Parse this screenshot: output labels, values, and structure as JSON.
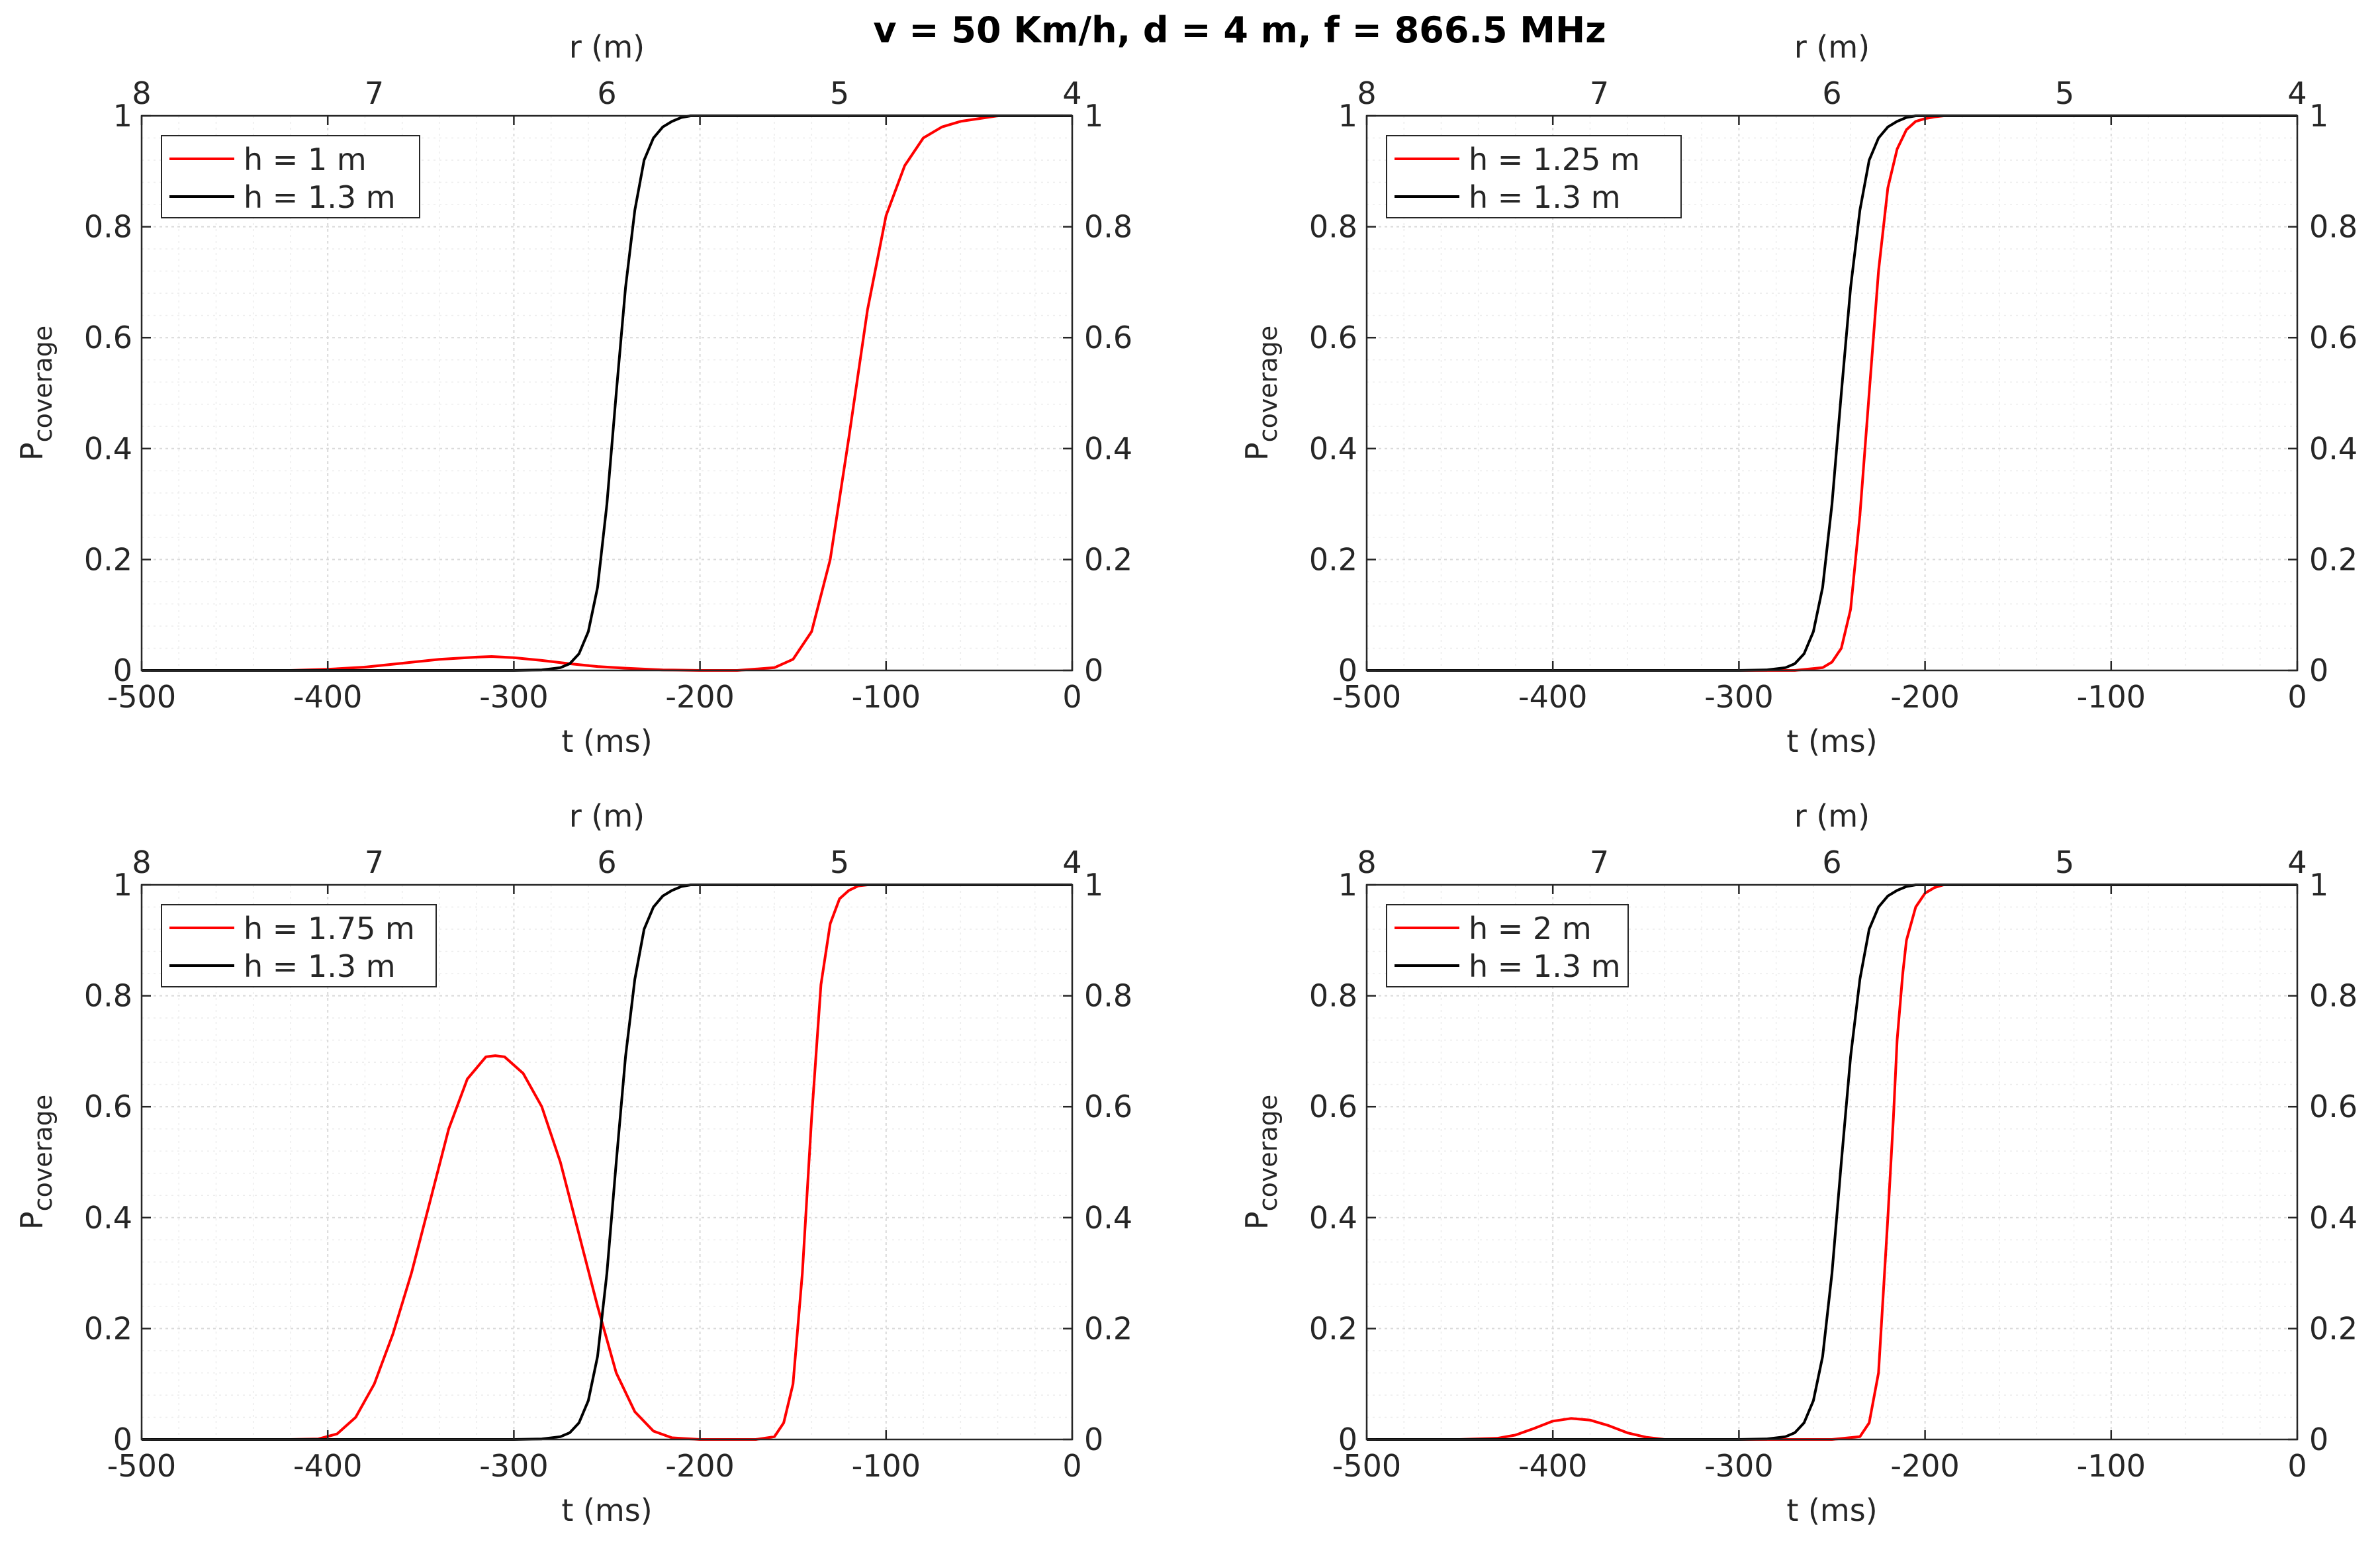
{
  "figure_title": "v = 50 Km/h, d = 4 m, f = 866.5 MHz",
  "colors": {
    "series_a": "#ff0000",
    "series_b": "#000000",
    "axis": "#262626",
    "grid": "#d9d9d9",
    "minor_grid": "#ececec"
  },
  "chart_data": [
    {
      "type": "line",
      "title": "",
      "xlabel": "t (ms)",
      "xlabel_top": "r (m)",
      "ylabel_main": "P",
      "ylabel_sub": "coverage",
      "xlim": [
        -500,
        0
      ],
      "ylim": [
        0,
        1
      ],
      "xticks": [
        -500,
        -400,
        -300,
        -200,
        -100,
        0
      ],
      "xtick_labels": [
        "-500",
        "-400",
        "-300",
        "-200",
        "-100",
        "0"
      ],
      "yticks": [
        0,
        0.2,
        0.4,
        0.6,
        0.8,
        1
      ],
      "ytick_labels": [
        "0",
        "0.2",
        "0.4",
        "0.6",
        "0.8",
        "1"
      ],
      "xtop_ticks": [
        8,
        7,
        6,
        5,
        4
      ],
      "xtop_tick_labels": [
        "8",
        "7",
        "6",
        "5",
        "4"
      ],
      "xtop_lim": [
        8,
        4
      ],
      "grid": true,
      "legend_position": "top-left",
      "series": [
        {
          "name": "h = 1 m",
          "color": "#ff0000",
          "x": [
            -500,
            -450,
            -420,
            -400,
            -380,
            -360,
            -340,
            -320,
            -312,
            -300,
            -285,
            -270,
            -255,
            -240,
            -220,
            -200,
            -180,
            -160,
            -150,
            -140,
            -130,
            -120,
            -110,
            -100,
            -90,
            -80,
            -70,
            -60,
            -40,
            -20,
            0
          ],
          "y": [
            0,
            0,
            0,
            0.002,
            0.006,
            0.013,
            0.02,
            0.024,
            0.025,
            0.023,
            0.018,
            0.012,
            0.007,
            0.004,
            0.001,
            0,
            0,
            0.005,
            0.02,
            0.07,
            0.2,
            0.42,
            0.65,
            0.82,
            0.91,
            0.96,
            0.98,
            0.99,
            1,
            1,
            1
          ]
        },
        {
          "name": "h = 1.3 m",
          "color": "#000000",
          "x": [
            -500,
            -300,
            -285,
            -275,
            -270,
            -265,
            -260,
            -255,
            -250,
            -245,
            -240,
            -235,
            -230,
            -225,
            -220,
            -215,
            -210,
            -205,
            -200,
            -190,
            -150,
            0
          ],
          "y": [
            0,
            0,
            0.001,
            0.005,
            0.012,
            0.03,
            0.07,
            0.15,
            0.3,
            0.5,
            0.69,
            0.83,
            0.92,
            0.96,
            0.98,
            0.99,
            0.997,
            1,
            1,
            1,
            1,
            1
          ]
        }
      ]
    },
    {
      "type": "line",
      "title": "",
      "xlabel": "t (ms)",
      "xlabel_top": "r (m)",
      "ylabel_main": "P",
      "ylabel_sub": "coverage",
      "xlim": [
        -500,
        0
      ],
      "ylim": [
        0,
        1
      ],
      "xticks": [
        -500,
        -400,
        -300,
        -200,
        -100,
        0
      ],
      "xtick_labels": [
        "-500",
        "-400",
        "-300",
        "-200",
        "-100",
        "0"
      ],
      "yticks": [
        0,
        0.2,
        0.4,
        0.6,
        0.8,
        1
      ],
      "ytick_labels": [
        "0",
        "0.2",
        "0.4",
        "0.6",
        "0.8",
        "1"
      ],
      "xtop_ticks": [
        8,
        7,
        6,
        5,
        4
      ],
      "xtop_tick_labels": [
        "8",
        "7",
        "6",
        "5",
        "4"
      ],
      "xtop_lim": [
        8,
        4
      ],
      "grid": true,
      "legend_position": "top-left",
      "series": [
        {
          "name": "h = 1.25 m",
          "color": "#ff0000",
          "x": [
            -500,
            -270,
            -255,
            -250,
            -245,
            -240,
            -235,
            -230,
            -225,
            -220,
            -215,
            -210,
            -205,
            -200,
            -195,
            -190,
            -180,
            -170,
            0
          ],
          "y": [
            0,
            0,
            0.005,
            0.015,
            0.04,
            0.11,
            0.28,
            0.5,
            0.72,
            0.87,
            0.94,
            0.975,
            0.99,
            0.995,
            0.998,
            1,
            1,
            1,
            1
          ]
        },
        {
          "name": "h = 1.3 m",
          "color": "#000000",
          "x": [
            -500,
            -300,
            -285,
            -275,
            -270,
            -265,
            -260,
            -255,
            -250,
            -245,
            -240,
            -235,
            -230,
            -225,
            -220,
            -215,
            -210,
            -205,
            -200,
            -190,
            -150,
            0
          ],
          "y": [
            0,
            0,
            0.001,
            0.005,
            0.012,
            0.03,
            0.07,
            0.15,
            0.3,
            0.5,
            0.69,
            0.83,
            0.92,
            0.96,
            0.98,
            0.99,
            0.997,
            1,
            1,
            1,
            1,
            1
          ]
        }
      ]
    },
    {
      "type": "line",
      "title": "",
      "xlabel": "t (ms)",
      "xlabel_top": "r (m)",
      "ylabel_main": "P",
      "ylabel_sub": "coverage",
      "xlim": [
        -500,
        0
      ],
      "ylim": [
        0,
        1
      ],
      "xticks": [
        -500,
        -400,
        -300,
        -200,
        -100,
        0
      ],
      "xtick_labels": [
        "-500",
        "-400",
        "-300",
        "-200",
        "-100",
        "0"
      ],
      "yticks": [
        0,
        0.2,
        0.4,
        0.6,
        0.8,
        1
      ],
      "ytick_labels": [
        "0",
        "0.2",
        "0.4",
        "0.6",
        "0.8",
        "1"
      ],
      "xtop_ticks": [
        8,
        7,
        6,
        5,
        4
      ],
      "xtop_tick_labels": [
        "8",
        "7",
        "6",
        "5",
        "4"
      ],
      "xtop_lim": [
        8,
        4
      ],
      "grid": true,
      "legend_position": "top-left",
      "series": [
        {
          "name": "h = 1.75 m",
          "color": "#ff0000",
          "x": [
            -500,
            -420,
            -405,
            -395,
            -385,
            -375,
            -365,
            -355,
            -345,
            -335,
            -325,
            -315,
            -310,
            -305,
            -295,
            -285,
            -275,
            -265,
            -255,
            -245,
            -235,
            -225,
            -215,
            -200,
            -170,
            -160,
            -155,
            -150,
            -145,
            -140,
            -135,
            -130,
            -125,
            -120,
            -115,
            -110,
            -100,
            0
          ],
          "y": [
            0,
            0,
            0.001,
            0.01,
            0.04,
            0.1,
            0.19,
            0.3,
            0.43,
            0.56,
            0.65,
            0.69,
            0.692,
            0.69,
            0.66,
            0.6,
            0.5,
            0.37,
            0.24,
            0.12,
            0.05,
            0.015,
            0.003,
            0,
            0,
            0.005,
            0.03,
            0.1,
            0.3,
            0.58,
            0.82,
            0.93,
            0.975,
            0.99,
            0.998,
            1,
            1,
            1
          ]
        },
        {
          "name": "h = 1.3 m",
          "color": "#000000",
          "x": [
            -500,
            -300,
            -285,
            -275,
            -270,
            -265,
            -260,
            -255,
            -250,
            -245,
            -240,
            -235,
            -230,
            -225,
            -220,
            -215,
            -210,
            -205,
            -200,
            -190,
            -150,
            0
          ],
          "y": [
            0,
            0,
            0.001,
            0.005,
            0.012,
            0.03,
            0.07,
            0.15,
            0.3,
            0.5,
            0.69,
            0.83,
            0.92,
            0.96,
            0.98,
            0.99,
            0.997,
            1,
            1,
            1,
            1,
            1
          ]
        }
      ]
    },
    {
      "type": "line",
      "title": "",
      "xlabel": "t (ms)",
      "xlabel_top": "r (m)",
      "ylabel_main": "P",
      "ylabel_sub": "coverage",
      "xlim": [
        -500,
        0
      ],
      "ylim": [
        0,
        1
      ],
      "xticks": [
        -500,
        -400,
        -300,
        -200,
        -100,
        0
      ],
      "xtick_labels": [
        "-500",
        "-400",
        "-300",
        "-200",
        "-100",
        "0"
      ],
      "yticks": [
        0,
        0.2,
        0.4,
        0.6,
        0.8,
        1
      ],
      "ytick_labels": [
        "0",
        "0.2",
        "0.4",
        "0.6",
        "0.8",
        "1"
      ],
      "xtop_ticks": [
        8,
        7,
        6,
        5,
        4
      ],
      "xtop_tick_labels": [
        "8",
        "7",
        "6",
        "5",
        "4"
      ],
      "xtop_lim": [
        8,
        4
      ],
      "grid": true,
      "legend_position": "top-left",
      "series": [
        {
          "name": "h = 2 m",
          "color": "#ff0000",
          "x": [
            -500,
            -450,
            -430,
            -420,
            -410,
            -400,
            -390,
            -380,
            -370,
            -360,
            -350,
            -340,
            -250,
            -235,
            -230,
            -225,
            -220,
            -217,
            -215,
            -212,
            -210,
            -205,
            -200,
            -195,
            -190,
            -180,
            0
          ],
          "y": [
            0,
            0,
            0.002,
            0.008,
            0.02,
            0.033,
            0.038,
            0.035,
            0.025,
            0.012,
            0.004,
            0,
            0,
            0.005,
            0.03,
            0.12,
            0.4,
            0.58,
            0.72,
            0.84,
            0.9,
            0.96,
            0.985,
            0.995,
            1,
            1,
            1
          ]
        },
        {
          "name": "h = 1.3 m",
          "color": "#000000",
          "x": [
            -500,
            -300,
            -285,
            -275,
            -270,
            -265,
            -260,
            -255,
            -250,
            -245,
            -240,
            -235,
            -230,
            -225,
            -220,
            -215,
            -210,
            -205,
            -200,
            -190,
            -150,
            0
          ],
          "y": [
            0,
            0,
            0.001,
            0.005,
            0.012,
            0.03,
            0.07,
            0.15,
            0.3,
            0.5,
            0.69,
            0.83,
            0.92,
            0.96,
            0.98,
            0.99,
            0.997,
            1,
            1,
            1,
            1,
            1
          ]
        }
      ]
    }
  ]
}
